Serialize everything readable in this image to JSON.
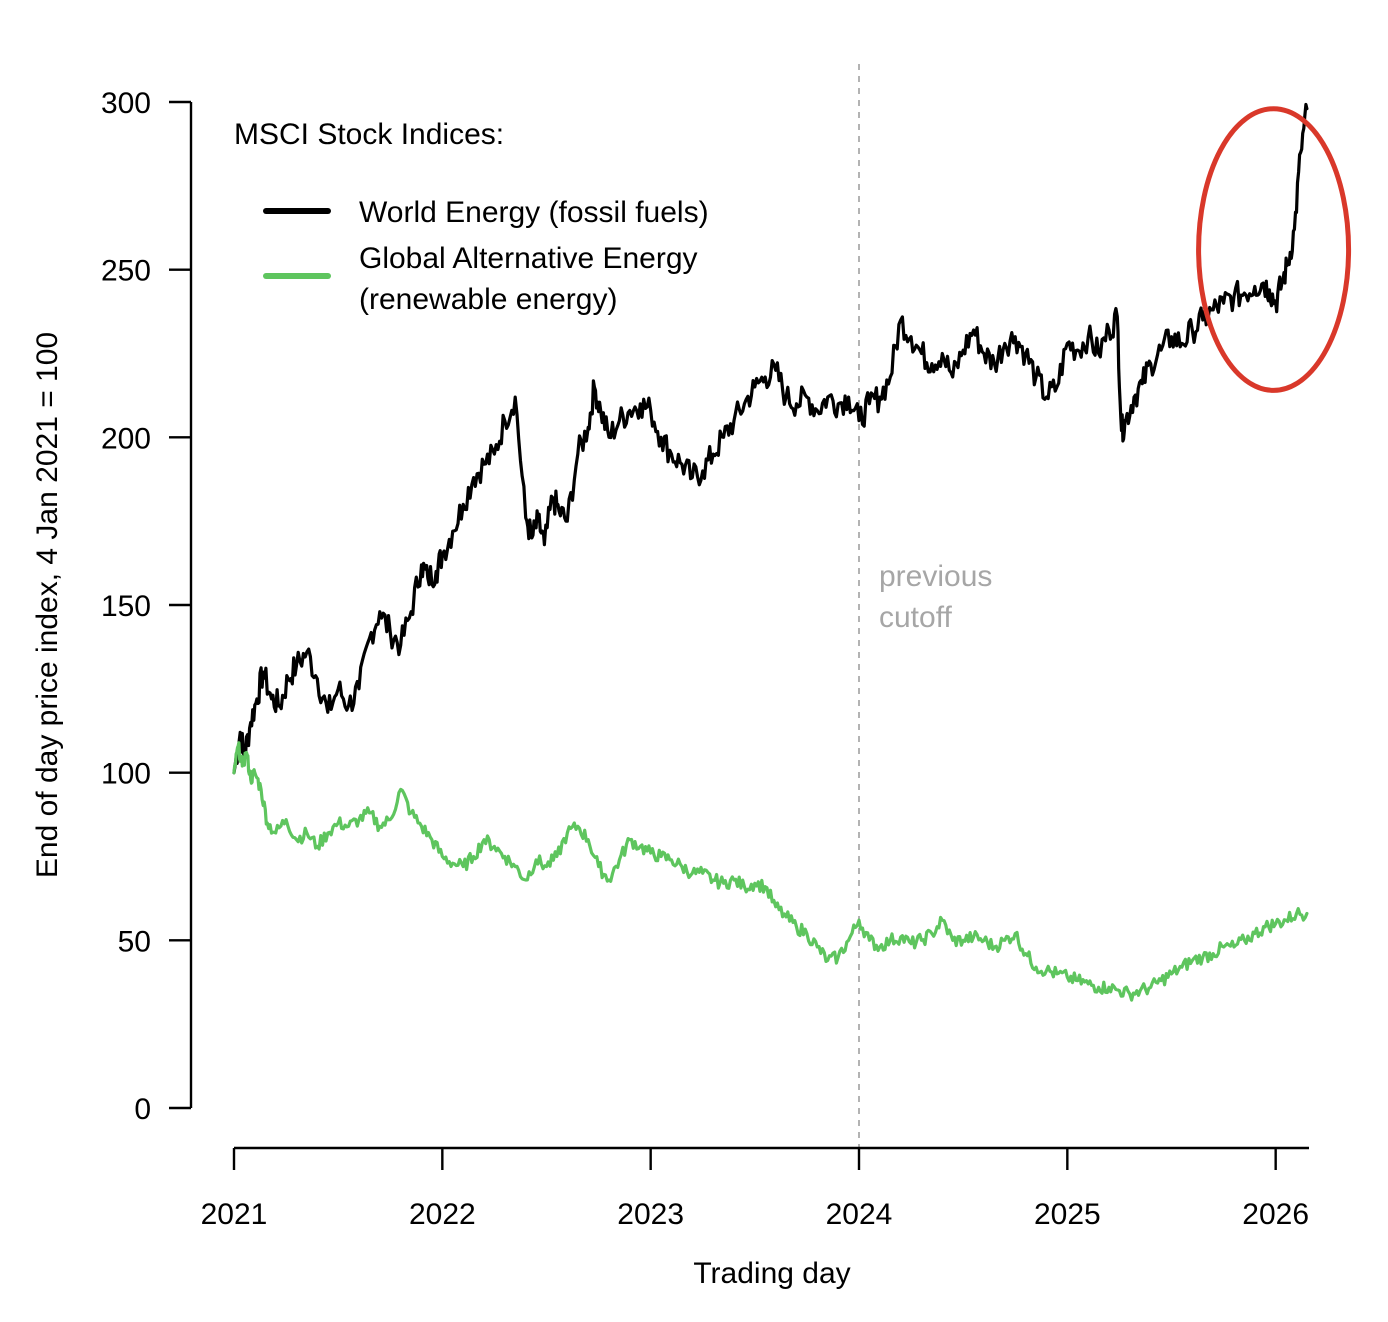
{
  "chart_data": {
    "type": "line",
    "title": "",
    "xlabel": "Trading day",
    "ylabel": "End of day price index, 4 Jan 2021 = 100",
    "xlim": [
      2021.0,
      2026.16
    ],
    "ylim": [
      0,
      300
    ],
    "x_ticks": [
      2021,
      2022,
      2023,
      2024,
      2025,
      2026
    ],
    "x_tick_labels": [
      "2021",
      "2022",
      "2023",
      "2024",
      "2025",
      "2026"
    ],
    "y_ticks": [
      0,
      50,
      100,
      150,
      200,
      250,
      300
    ],
    "y_tick_labels": [
      "0",
      "50",
      "100",
      "150",
      "200",
      "250",
      "300"
    ],
    "grid": false,
    "legend": {
      "heading": "MSCI Stock Indices:",
      "position": "top-left",
      "entries": [
        {
          "line1": "World Energy (fossil fuels)",
          "line2": ""
        },
        {
          "line1": "Global Alternative Energy",
          "line2": "(renewable energy)"
        }
      ]
    },
    "annotations": [
      {
        "type": "vline",
        "x": 2024.0,
        "color": "#b3b3b3",
        "style": "dashed",
        "label_line1": "previous",
        "label_line2": "cutoff"
      },
      {
        "type": "ellipse-highlight",
        "x_center": 2025.99,
        "y_center": 256,
        "x_radius": 0.36,
        "y_radius": 42,
        "color": "#d9382a"
      }
    ],
    "series": [
      {
        "name": "World Energy (fossil fuels)",
        "color": "#000000",
        "x": [
          2021.0,
          2021.03,
          2021.05,
          2021.08,
          2021.11,
          2021.14,
          2021.18,
          2021.22,
          2021.26,
          2021.3,
          2021.35,
          2021.4,
          2021.45,
          2021.5,
          2021.55,
          2021.6,
          2021.65,
          2021.7,
          2021.75,
          2021.8,
          2021.85,
          2021.9,
          2021.93,
          2021.97,
          2022.0,
          2022.05,
          2022.1,
          2022.15,
          2022.2,
          2022.25,
          2022.3,
          2022.35,
          2022.4,
          2022.43,
          2022.46,
          2022.49,
          2022.53,
          2022.56,
          2022.6,
          2022.65,
          2022.7,
          2022.73,
          2022.76,
          2022.8,
          2022.85,
          2022.9,
          2022.95,
          2023.0,
          2023.05,
          2023.1,
          2023.15,
          2023.2,
          2023.25,
          2023.3,
          2023.35,
          2023.4,
          2023.45,
          2023.5,
          2023.55,
          2023.6,
          2023.65,
          2023.7,
          2023.75,
          2023.8,
          2023.85,
          2023.9,
          2023.95,
          2024.0,
          2024.05,
          2024.1,
          2024.15,
          2024.2,
          2024.25,
          2024.3,
          2024.35,
          2024.4,
          2024.45,
          2024.5,
          2024.55,
          2024.6,
          2024.65,
          2024.7,
          2024.75,
          2024.8,
          2024.85,
          2024.9,
          2024.95,
          2025.0,
          2025.05,
          2025.1,
          2025.15,
          2025.2,
          2025.24,
          2025.26,
          2025.28,
          2025.32,
          2025.36,
          2025.4,
          2025.45,
          2025.5,
          2025.55,
          2025.6,
          2025.65,
          2025.7,
          2025.75,
          2025.8,
          2025.85,
          2025.9,
          2025.94,
          2025.97,
          2026.0,
          2026.03,
          2026.06,
          2026.09,
          2026.12,
          2026.15
        ],
        "values": [
          100,
          112,
          105,
          115,
          122,
          130,
          122,
          120,
          128,
          132,
          136,
          128,
          118,
          125,
          120,
          125,
          140,
          148,
          142,
          138,
          148,
          162,
          158,
          160,
          165,
          172,
          180,
          188,
          192,
          195,
          205,
          212,
          176,
          170,
          175,
          168,
          182,
          178,
          175,
          195,
          203,
          215,
          208,
          200,
          205,
          208,
          210,
          208,
          200,
          195,
          192,
          188,
          190,
          195,
          200,
          205,
          210,
          215,
          218,
          220,
          212,
          210,
          212,
          208,
          212,
          210,
          212,
          205,
          210,
          212,
          218,
          235,
          230,
          225,
          222,
          225,
          218,
          226,
          232,
          225,
          222,
          228,
          230,
          225,
          218,
          212,
          215,
          228,
          226,
          230,
          225,
          232,
          236,
          202,
          205,
          212,
          216,
          222,
          226,
          230,
          228,
          232,
          235,
          238,
          240,
          242,
          243,
          245,
          246,
          244,
          240,
          246,
          252,
          262,
          285,
          298
        ]
      },
      {
        "name": "Global Alternative Energy (renewable energy)",
        "color": "#5ec55e",
        "x": [
          2021.0,
          2021.02,
          2021.04,
          2021.06,
          2021.08,
          2021.1,
          2021.13,
          2021.16,
          2021.2,
          2021.25,
          2021.3,
          2021.35,
          2021.4,
          2021.45,
          2021.5,
          2021.55,
          2021.6,
          2021.65,
          2021.7,
          2021.75,
          2021.8,
          2021.85,
          2021.9,
          2021.95,
          2022.0,
          2022.05,
          2022.1,
          2022.15,
          2022.2,
          2022.25,
          2022.3,
          2022.35,
          2022.4,
          2022.45,
          2022.5,
          2022.55,
          2022.6,
          2022.65,
          2022.7,
          2022.75,
          2022.8,
          2022.85,
          2022.9,
          2022.95,
          2023.0,
          2023.05,
          2023.1,
          2023.15,
          2023.2,
          2023.25,
          2023.3,
          2023.35,
          2023.4,
          2023.45,
          2023.5,
          2023.55,
          2023.6,
          2023.65,
          2023.7,
          2023.75,
          2023.8,
          2023.85,
          2023.9,
          2023.95,
          2024.0,
          2024.05,
          2024.1,
          2024.15,
          2024.2,
          2024.25,
          2024.3,
          2024.35,
          2024.4,
          2024.45,
          2024.5,
          2024.55,
          2024.6,
          2024.65,
          2024.7,
          2024.75,
          2024.8,
          2024.85,
          2024.9,
          2024.95,
          2025.0,
          2025.05,
          2025.1,
          2025.15,
          2025.2,
          2025.25,
          2025.3,
          2025.35,
          2025.4,
          2025.45,
          2025.5,
          2025.55,
          2025.6,
          2025.65,
          2025.7,
          2025.75,
          2025.8,
          2025.85,
          2025.9,
          2025.95,
          2026.0,
          2026.05,
          2026.1,
          2026.15
        ],
        "values": [
          100,
          108,
          102,
          106,
          98,
          100,
          95,
          85,
          82,
          86,
          80,
          82,
          78,
          82,
          85,
          84,
          86,
          88,
          84,
          86,
          95,
          88,
          84,
          80,
          75,
          73,
          72,
          75,
          80,
          78,
          75,
          72,
          68,
          74,
          72,
          75,
          82,
          84,
          80,
          72,
          68,
          74,
          80,
          78,
          76,
          75,
          74,
          72,
          70,
          70,
          68,
          67,
          68,
          66,
          67,
          66,
          60,
          57,
          54,
          52,
          48,
          44,
          45,
          50,
          56,
          50,
          48,
          50,
          51,
          49,
          50,
          52,
          56,
          50,
          50,
          51,
          50,
          48,
          50,
          52,
          46,
          42,
          41,
          40,
          39,
          38,
          37,
          36,
          36,
          35,
          34,
          35,
          36,
          38,
          40,
          42,
          44,
          45,
          46,
          48,
          48,
          50,
          52,
          54,
          55,
          56,
          58,
          58
        ]
      }
    ]
  }
}
